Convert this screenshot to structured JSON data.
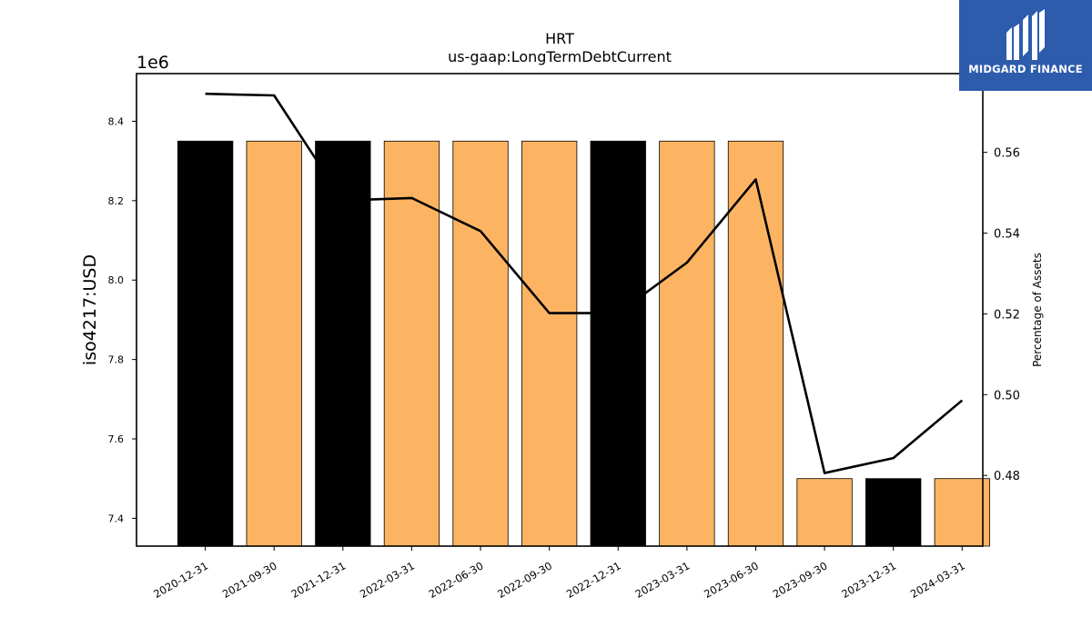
{
  "chart_data": {
    "type": "bar",
    "title": "HRT",
    "subtitle": "us-gaap:LongTermDebtCurrent",
    "ylabel": "iso4217:USD",
    "y_offset_text": "1e6",
    "y2label": "Percentage of Assets",
    "categories": [
      "2020-12-31",
      "2021-09-30",
      "2021-12-31",
      "2022-03-31",
      "2022-06-30",
      "2022-09-30",
      "2022-12-31",
      "2023-03-31",
      "2023-06-30",
      "2023-09-30",
      "2023-12-31",
      "2024-03-31"
    ],
    "series": [
      {
        "values": [
          8.35,
          8.35,
          8.35,
          8.35,
          8.35,
          8.35,
          8.35,
          8.35,
          8.35,
          7.5,
          7.5,
          7.5
        ],
        "colors": [
          "#000000",
          "#fdb462",
          "#000000",
          "#fdb462",
          "#fdb462",
          "#fdb462",
          "#000000",
          "#fdb462",
          "#fdb462",
          "#fdb462",
          "#000000",
          "#fdb462"
        ]
      },
      {
        "type": "line",
        "axis": "right",
        "values": [
          0.5745,
          0.5741,
          0.5481,
          0.5487,
          0.5405,
          0.5202,
          0.5202,
          0.5327,
          0.5533,
          0.4806,
          0.4843,
          0.4986
        ],
        "color": "#000000"
      }
    ],
    "ylim": [
      7.33,
      8.52
    ],
    "y_ticks": [
      7.4,
      7.6,
      7.8,
      8.0,
      8.2,
      8.4
    ],
    "y2lim": [
      0.4625,
      0.5795
    ],
    "y2_ticks": [
      0.48,
      0.5,
      0.52,
      0.54,
      0.56
    ],
    "grid": false
  },
  "logo": {
    "text": "MIDGARD FINANCE",
    "bg_color": "#2d5cad"
  }
}
